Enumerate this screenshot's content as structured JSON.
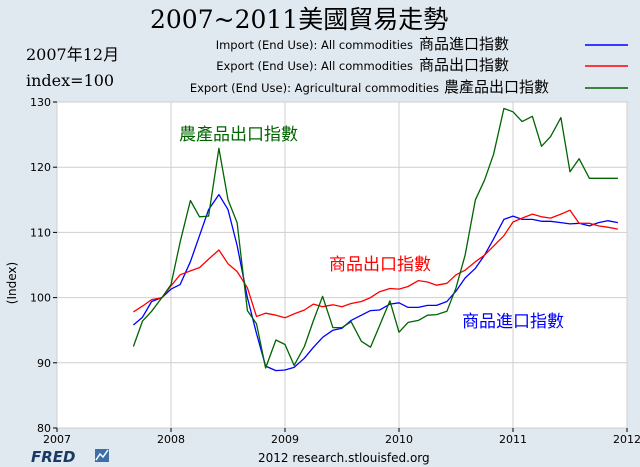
{
  "chart_data": {
    "type": "line",
    "title": "2007~2011美國貿易走勢",
    "subtitle_lines": [
      "2007年12月",
      "index=100"
    ],
    "ylabel": "(Index)",
    "xlabel": "",
    "xlim": [
      2007,
      2012
    ],
    "ylim": [
      80,
      130
    ],
    "x_ticks": [
      2007,
      2008,
      2009,
      2010,
      2011,
      2012
    ],
    "y_ticks": [
      80,
      90,
      100,
      110,
      120,
      130
    ],
    "grid": true,
    "legend_position": "top-right",
    "legend": [
      {
        "label": "Import (End Use): All commodities",
        "zh_label": "商品進口指數",
        "color": "#0000ff"
      },
      {
        "label": "Export (End Use): All commodities",
        "zh_label": "商品出口指數",
        "color": "#ff0000"
      },
      {
        "label": "Export (End Use): Agricultural commodities",
        "zh_label": "農產品出口指數",
        "color": "#006400"
      }
    ],
    "annotations": [
      {
        "text": "農產品出口指數",
        "series": 2
      },
      {
        "text": "商品出口指數",
        "series": 1
      },
      {
        "text": "商品進口指數",
        "series": 0
      }
    ],
    "series": [
      {
        "name": "Import (End Use): All commodities",
        "color": "#0000ff",
        "x": [
          2007.67,
          2007.75,
          2007.83,
          2007.92,
          2008.0,
          2008.08,
          2008.17,
          2008.25,
          2008.33,
          2008.42,
          2008.5,
          2008.58,
          2008.67,
          2008.75,
          2008.83,
          2008.92,
          2009.0,
          2009.08,
          2009.17,
          2009.25,
          2009.33,
          2009.42,
          2009.5,
          2009.58,
          2009.67,
          2009.75,
          2009.83,
          2009.92,
          2010.0,
          2010.08,
          2010.17,
          2010.25,
          2010.33,
          2010.42,
          2010.5,
          2010.58,
          2010.67,
          2010.75,
          2010.83,
          2010.92,
          2011.0,
          2011.08,
          2011.17,
          2011.25,
          2011.33,
          2011.42,
          2011.5,
          2011.58,
          2011.67,
          2011.75,
          2011.83,
          2011.92
        ],
        "y": [
          95.8,
          97.0,
          99.4,
          100.0,
          101.3,
          102.0,
          105.5,
          109.5,
          113.5,
          115.8,
          113.5,
          108.0,
          100.0,
          94.5,
          89.5,
          88.8,
          88.9,
          89.3,
          90.7,
          92.4,
          93.9,
          95.0,
          95.3,
          96.5,
          97.3,
          98.0,
          98.1,
          99.0,
          99.2,
          98.5,
          98.5,
          98.8,
          98.8,
          99.4,
          101.0,
          103.0,
          104.5,
          106.5,
          109.0,
          112.0,
          112.5,
          112.0,
          112.0,
          111.7,
          111.7,
          111.5,
          111.3,
          111.4,
          111.0,
          111.5,
          111.8,
          111.5
        ]
      },
      {
        "name": "Export (End Use): All commodities",
        "color": "#ff0000",
        "x": [
          2007.67,
          2007.75,
          2007.83,
          2007.92,
          2008.0,
          2008.08,
          2008.17,
          2008.25,
          2008.33,
          2008.42,
          2008.5,
          2008.58,
          2008.67,
          2008.75,
          2008.83,
          2008.92,
          2009.0,
          2009.08,
          2009.17,
          2009.25,
          2009.33,
          2009.42,
          2009.5,
          2009.58,
          2009.67,
          2009.75,
          2009.83,
          2009.92,
          2010.0,
          2010.08,
          2010.17,
          2010.25,
          2010.33,
          2010.42,
          2010.5,
          2010.58,
          2010.67,
          2010.75,
          2010.83,
          2010.92,
          2011.0,
          2011.08,
          2011.17,
          2011.25,
          2011.33,
          2011.42,
          2011.5,
          2011.58,
          2011.67,
          2011.75,
          2011.83,
          2011.92
        ],
        "y": [
          97.8,
          98.7,
          99.7,
          100.0,
          101.8,
          103.5,
          104.1,
          104.6,
          105.9,
          107.3,
          105.2,
          104.0,
          101.5,
          97.1,
          97.6,
          97.3,
          96.9,
          97.5,
          98.1,
          99.0,
          98.6,
          98.9,
          98.6,
          99.1,
          99.4,
          100.0,
          100.9,
          101.4,
          101.3,
          101.7,
          102.6,
          102.4,
          101.9,
          102.2,
          103.5,
          104.2,
          105.5,
          106.5,
          107.9,
          109.5,
          111.6,
          112.2,
          112.8,
          112.4,
          112.2,
          112.8,
          113.4,
          111.4,
          111.4,
          111.0,
          110.8,
          110.5
        ]
      },
      {
        "name": "Export (End Use): Agricultural commodities",
        "color": "#006400",
        "x": [
          2007.67,
          2007.75,
          2007.83,
          2007.92,
          2008.0,
          2008.08,
          2008.17,
          2008.25,
          2008.33,
          2008.42,
          2008.5,
          2008.58,
          2008.67,
          2008.75,
          2008.83,
          2008.92,
          2009.0,
          2009.08,
          2009.17,
          2009.25,
          2009.33,
          2009.42,
          2009.5,
          2009.58,
          2009.67,
          2009.75,
          2009.83,
          2009.92,
          2010.0,
          2010.08,
          2010.17,
          2010.25,
          2010.33,
          2010.42,
          2010.5,
          2010.58,
          2010.67,
          2010.75,
          2010.83,
          2010.92,
          2011.0,
          2011.08,
          2011.17,
          2011.25,
          2011.33,
          2011.42,
          2011.5,
          2011.58,
          2011.67,
          2011.75,
          2011.83,
          2011.92
        ],
        "y": [
          92.5,
          96.4,
          97.9,
          100.0,
          102.0,
          108.5,
          114.9,
          112.4,
          112.5,
          122.9,
          115.0,
          111.5,
          98.0,
          96.0,
          89.2,
          93.5,
          92.8,
          89.6,
          92.5,
          96.5,
          100.2,
          95.4,
          95.4,
          96.3,
          93.3,
          92.4,
          95.7,
          99.5,
          94.7,
          96.2,
          96.5,
          97.3,
          97.4,
          97.9,
          101.5,
          106.5,
          115.0,
          118.0,
          122.0,
          129.0,
          128.5,
          127.0,
          127.8,
          123.2,
          124.7,
          127.6,
          119.3,
          121.3,
          118.3,
          118.3,
          118.3,
          118.3
        ]
      }
    ]
  },
  "footer": {
    "brand": "FRED",
    "credit": "2012 research.stlouisfed.org"
  }
}
